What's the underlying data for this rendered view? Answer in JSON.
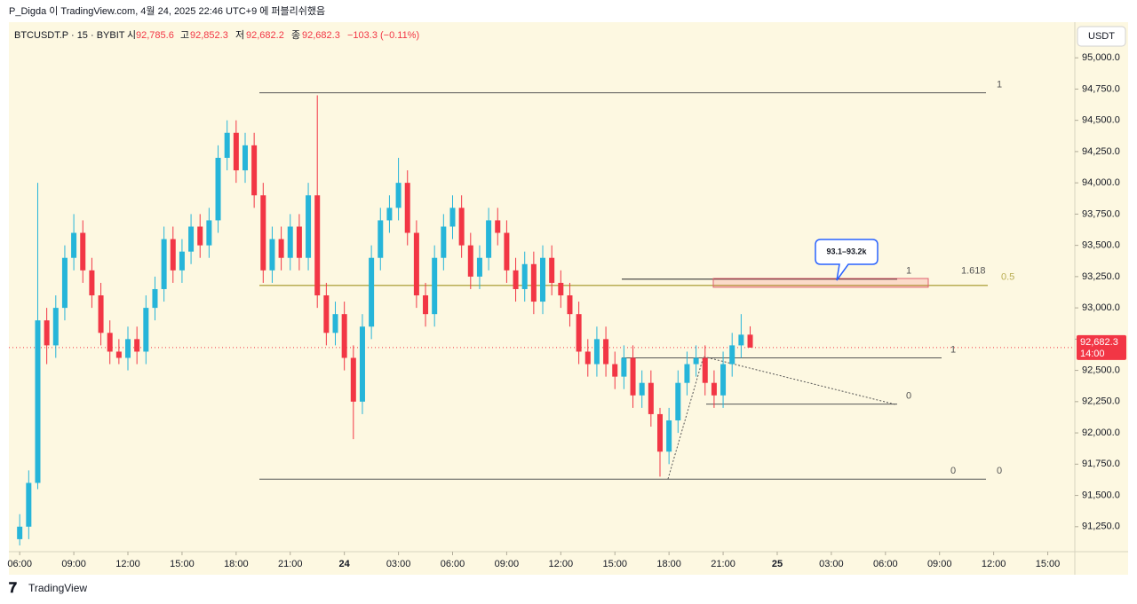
{
  "header": {
    "published": "P_Digda 이 TradingView.com, 4월 24, 2025 22:46 UTC+9 에 퍼블리쉬했음"
  },
  "legend": {
    "symbol": "BTCUSDT.P · 15 · BYBIT",
    "open_label": "시",
    "open": "92,785.6",
    "high_label": "고",
    "high": "92,852.3",
    "low_label": "저",
    "low": "92,682.2",
    "close_label": "종",
    "close": "92,682.3",
    "change": "−103.3 (−0.11%)"
  },
  "currency": "USDT",
  "footer": {
    "brand": "TradingView"
  },
  "chart_data": {
    "type": "candlestick",
    "up_color": "#26b5d9",
    "down_color": "#f23645",
    "open": [
      91150,
      91250,
      91600,
      92900,
      92700,
      93000,
      93400,
      93600,
      93300,
      93100,
      92800,
      92650,
      92600,
      92750,
      92650,
      93000,
      93150,
      93550,
      93300,
      93450,
      93650,
      93500,
      93700,
      94200,
      94400,
      94100,
      94300,
      93900,
      93300,
      93550,
      93400,
      93650,
      93400,
      93900,
      93100,
      92800,
      92950,
      92600,
      92250,
      92850,
      93400,
      93700,
      93800,
      94000,
      93600,
      93100,
      92950,
      93400,
      93650,
      93800,
      93500,
      93250,
      93400,
      93700,
      93600,
      93300,
      93150,
      93350,
      93050,
      93400,
      93200,
      93100,
      92950,
      92650,
      92550,
      92750,
      92550,
      92450,
      92600,
      92300,
      92400,
      92150,
      91850,
      92100,
      92400,
      92550,
      92600,
      92400,
      92300,
      92550,
      92700,
      92785.6
    ],
    "high": [
      91350,
      91700,
      94000,
      93000,
      93100,
      93500,
      93750,
      93700,
      93400,
      93200,
      92900,
      92750,
      92850,
      92850,
      93100,
      93250,
      93650,
      93650,
      93550,
      93750,
      93750,
      93800,
      94300,
      94500,
      94500,
      94400,
      94400,
      94000,
      93650,
      93650,
      93750,
      93750,
      94000,
      94700,
      93200,
      93050,
      93050,
      92700,
      92950,
      93500,
      93800,
      93900,
      94200,
      94100,
      93700,
      93200,
      93500,
      93750,
      93900,
      93900,
      93600,
      93500,
      93800,
      93800,
      93700,
      93400,
      93450,
      93450,
      93500,
      93500,
      93300,
      93200,
      93050,
      92750,
      92850,
      92850,
      92650,
      92700,
      92700,
      92500,
      92500,
      92200,
      92200,
      92500,
      92650,
      92700,
      92700,
      92500,
      92650,
      92800,
      92950,
      92852.3
    ],
    "low": [
      91100,
      91150,
      91550,
      92550,
      92600,
      92900,
      93300,
      93200,
      93000,
      92700,
      92550,
      92550,
      92500,
      92550,
      92550,
      92900,
      93050,
      93200,
      93200,
      93350,
      93400,
      93400,
      93600,
      94100,
      94000,
      94000,
      93800,
      93200,
      93200,
      93300,
      93300,
      93300,
      93300,
      93000,
      92700,
      92700,
      92500,
      91950,
      92150,
      92750,
      93300,
      93600,
      93700,
      93500,
      93000,
      92850,
      92850,
      93300,
      93550,
      93400,
      93150,
      93150,
      93300,
      93500,
      93200,
      93050,
      93050,
      92950,
      92950,
      93100,
      93000,
      92850,
      92550,
      92450,
      92450,
      92450,
      92350,
      92350,
      92200,
      92200,
      92050,
      91650,
      91750,
      92000,
      92300,
      92450,
      92300,
      92200,
      92200,
      92450,
      92600,
      92682.2
    ],
    "close": [
      91250,
      91600,
      92900,
      92700,
      93000,
      93400,
      93600,
      93300,
      93100,
      92800,
      92650,
      92600,
      92750,
      92650,
      93000,
      93150,
      93550,
      93300,
      93450,
      93650,
      93500,
      93700,
      94200,
      94400,
      94100,
      94300,
      93900,
      93300,
      93550,
      93400,
      93650,
      93400,
      93900,
      93100,
      92800,
      92950,
      92600,
      92250,
      92850,
      93400,
      93700,
      93800,
      94000,
      93600,
      93100,
      92950,
      93400,
      93650,
      93800,
      93500,
      93250,
      93400,
      93700,
      93600,
      93300,
      93150,
      93350,
      93050,
      93400,
      93200,
      93100,
      92950,
      92650,
      92550,
      92750,
      92550,
      92450,
      92600,
      92300,
      92400,
      92150,
      91850,
      92100,
      92400,
      92550,
      92600,
      92400,
      92300,
      92550,
      92700,
      92785.6,
      92682.3
    ],
    "xlim": [
      -1.2,
      117
    ],
    "xticks": [
      {
        "value": 0,
        "label": "06:00"
      },
      {
        "value": 6,
        "label": "09:00"
      },
      {
        "value": 12,
        "label": "12:00"
      },
      {
        "value": 18,
        "label": "15:00"
      },
      {
        "value": 24,
        "label": "18:00"
      },
      {
        "value": 30,
        "label": "21:00"
      },
      {
        "value": 36,
        "label": "24"
      },
      {
        "value": 42,
        "label": "03:00"
      },
      {
        "value": 48,
        "label": "06:00"
      },
      {
        "value": 54,
        "label": "09:00"
      },
      {
        "value": 60,
        "label": "12:00"
      },
      {
        "value": 66,
        "label": "15:00"
      },
      {
        "value": 72,
        "label": "18:00"
      },
      {
        "value": 78,
        "label": "21:00"
      },
      {
        "value": 84,
        "label": "25"
      },
      {
        "value": 90,
        "label": "03:00"
      },
      {
        "value": 96,
        "label": "06:00"
      },
      {
        "value": 102,
        "label": "09:00"
      },
      {
        "value": 108,
        "label": "12:00"
      },
      {
        "value": 114,
        "label": "15:00"
      }
    ],
    "ylim": [
      91050,
      95285
    ],
    "yticks": [
      {
        "value": 91250,
        "label": "91,250.0"
      },
      {
        "value": 91500,
        "label": "91,500.0"
      },
      {
        "value": 91750,
        "label": "91,750.0"
      },
      {
        "value": 92000,
        "label": "92,000.0"
      },
      {
        "value": 92250,
        "label": "92,250.0"
      },
      {
        "value": 92500,
        "label": "92,500.0"
      },
      {
        "value": 92750,
        "label": "92,750.0"
      },
      {
        "value": 93000,
        "label": "93,000.0"
      },
      {
        "value": 93250,
        "label": "93,250.0"
      },
      {
        "value": 93500,
        "label": "93,500.0"
      },
      {
        "value": 93750,
        "label": "93,750.0"
      },
      {
        "value": 94000,
        "label": "94,000.0"
      },
      {
        "value": 94250,
        "label": "94,250.0"
      },
      {
        "value": 94500,
        "label": "94,500.0"
      },
      {
        "value": 94750,
        "label": "94,750.0"
      },
      {
        "value": 95000,
        "label": "95,000.0"
      }
    ],
    "last_price": {
      "value": 92682.3,
      "label": "92,682.3",
      "countdown": "14:00"
    },
    "levels": [
      {
        "value": 94720,
        "label": "1"
      },
      {
        "value": 91630,
        "label": "0"
      },
      {
        "value": 93180,
        "label": "0.5"
      },
      {
        "value": 92600,
        "label": "1"
      },
      {
        "value": 92230,
        "label": "0"
      },
      {
        "value": 93230,
        "label": "1"
      },
      {
        "value": 93230,
        "label": "1.618"
      },
      {
        "value": 91630,
        "label": "0"
      }
    ],
    "zone": {
      "top": 93235,
      "bottom": 93165
    },
    "callout": "93.1–93.2k"
  }
}
